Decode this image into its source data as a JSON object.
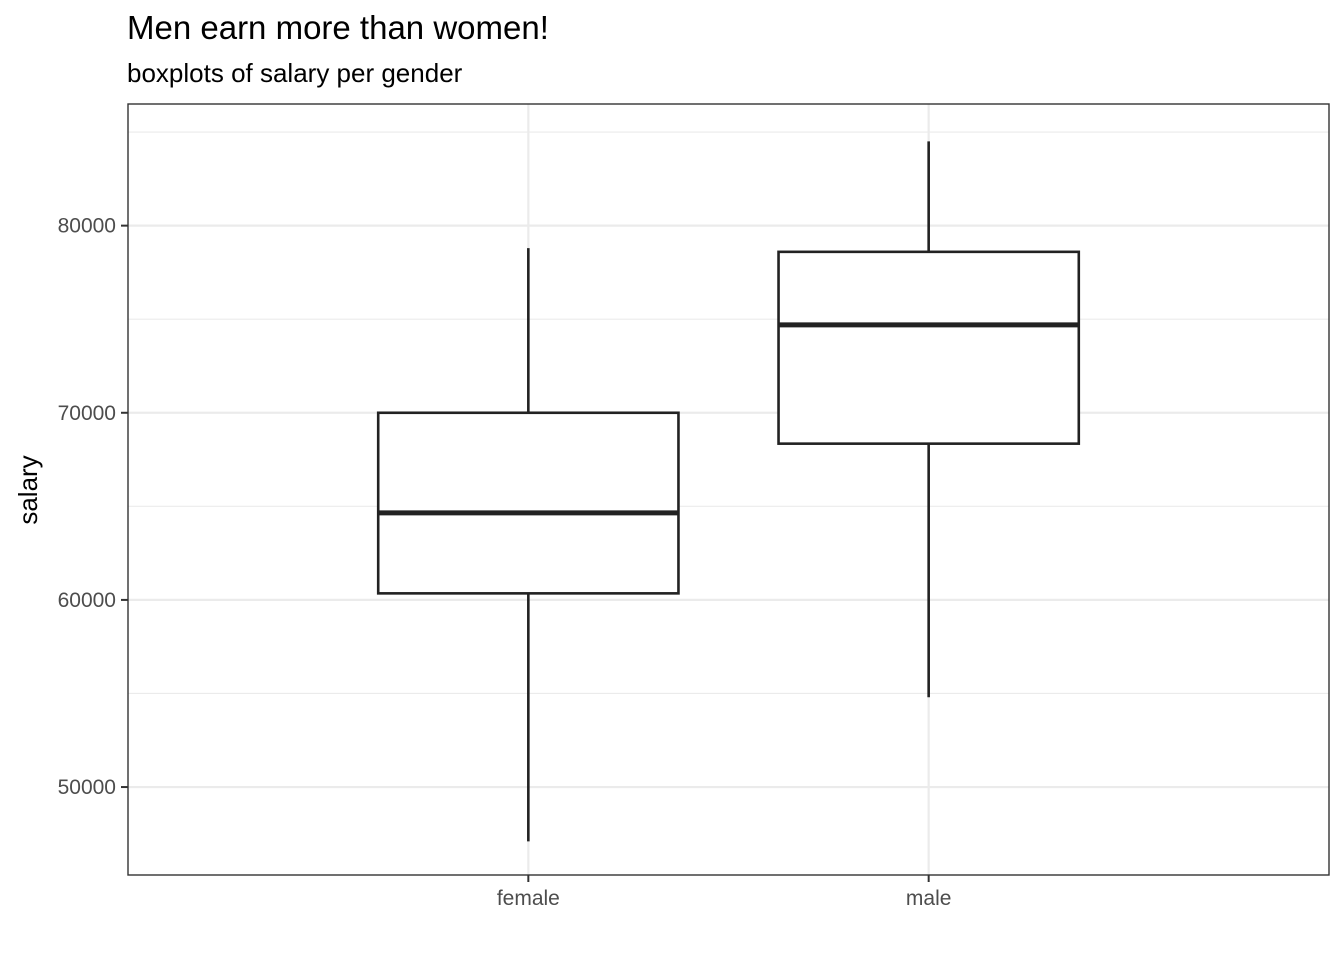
{
  "chart_data": {
    "type": "boxplot",
    "title": "Men earn more than women!",
    "subtitle": "boxplots of salary per gender",
    "xlabel": "",
    "ylabel": "salary",
    "categories": [
      "female",
      "male"
    ],
    "boxes": [
      {
        "category": "female",
        "min": 47100,
        "q1": 60350,
        "median": 64650,
        "q3": 70000,
        "max": 78800
      },
      {
        "category": "male",
        "min": 54800,
        "q1": 68350,
        "median": 74700,
        "q3": 78600,
        "max": 84500
      }
    ],
    "ylim": [
      45300,
      86500
    ],
    "y_ticks": [
      50000,
      60000,
      70000,
      80000
    ],
    "y_tick_labels": [
      "50000",
      "60000",
      "70000",
      "80000"
    ],
    "grid": true,
    "legend": "none",
    "colors": {
      "box_fill": "#ffffff",
      "box_stroke": "#222222",
      "grid": "#ebebeb",
      "border": "#333333",
      "tick_text": "#4d4d4d"
    }
  }
}
